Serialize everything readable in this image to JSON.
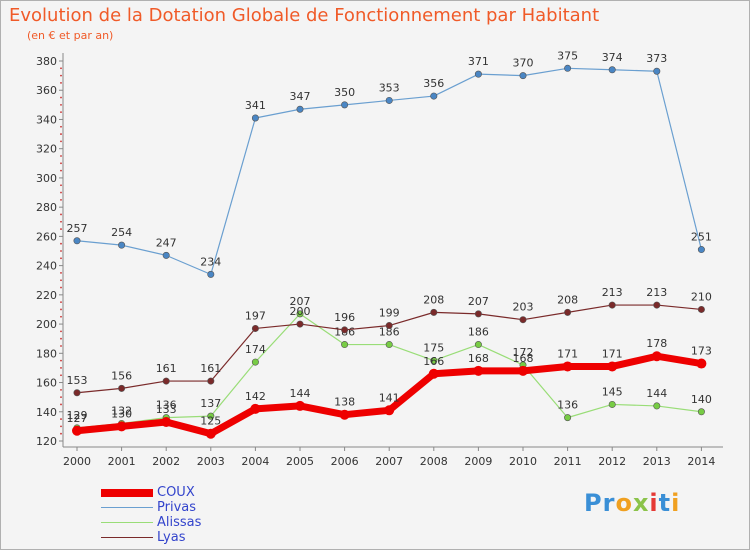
{
  "title": "Evolution de la Dotation Globale de Fonctionnement par Habitant",
  "subtitle": "(en € et par an)",
  "logo": {
    "text": "Proxiti",
    "colors": [
      "#3a8fd6",
      "#3a8fd6",
      "#f0a020",
      "#8bc34a",
      "#e53935",
      "#3a8fd6",
      "#f0a020"
    ]
  },
  "chart_data": {
    "type": "line",
    "title": "Evolution de la Dotation Globale de Fonctionnement par Habitant",
    "ylabel": "(en € et par an)",
    "xlabel": "",
    "ylim": [
      120,
      380
    ],
    "yticks": [
      120,
      140,
      160,
      180,
      200,
      220,
      240,
      260,
      280,
      300,
      320,
      340,
      360,
      380
    ],
    "categories": [
      "2000",
      "2001",
      "2002",
      "2003",
      "2004",
      "2005",
      "2006",
      "2007",
      "2008",
      "2009",
      "2010",
      "2011",
      "2012",
      "2013",
      "2014"
    ],
    "grid": false,
    "legend_position": "bottom-left",
    "series": [
      {
        "name": "Privas",
        "color": "#6a9fd0",
        "marker": "#4a86c4",
        "width": 1.2,
        "values": [
          257,
          254,
          247,
          234,
          341,
          347,
          350,
          353,
          356,
          371,
          370,
          375,
          374,
          373,
          251
        ]
      },
      {
        "name": "Alissas",
        "color": "#99dd77",
        "marker": "#77cc44",
        "width": 1.2,
        "values": [
          129,
          132,
          136,
          137,
          174,
          207,
          186,
          186,
          175,
          186,
          172,
          136,
          145,
          144,
          140
        ]
      },
      {
        "name": "Lyas",
        "color": "#7a2a2a",
        "marker": "#7a2a2a",
        "width": 1.2,
        "values": [
          153,
          156,
          161,
          161,
          197,
          200,
          196,
          199,
          208,
          207,
          203,
          208,
          213,
          213,
          210
        ]
      },
      {
        "name": "COUX",
        "color": "#ee0000",
        "marker": "#ee0000",
        "width": 7,
        "values": [
          127,
          130,
          133,
          125,
          142,
          144,
          138,
          141,
          166,
          168,
          168,
          171,
          171,
          178,
          173
        ]
      }
    ],
    "legend": [
      {
        "name": "COUX",
        "color": "#ee0000",
        "text_color": "#3344cc",
        "thick": true
      },
      {
        "name": "Privas",
        "color": "#6a9fd0",
        "text_color": "#3344cc",
        "thick": false
      },
      {
        "name": "Alissas",
        "color": "#99dd77",
        "text_color": "#3344cc",
        "thick": false
      },
      {
        "name": "Lyas",
        "color": "#7a2a2a",
        "text_color": "#3344cc",
        "thick": false
      }
    ]
  }
}
